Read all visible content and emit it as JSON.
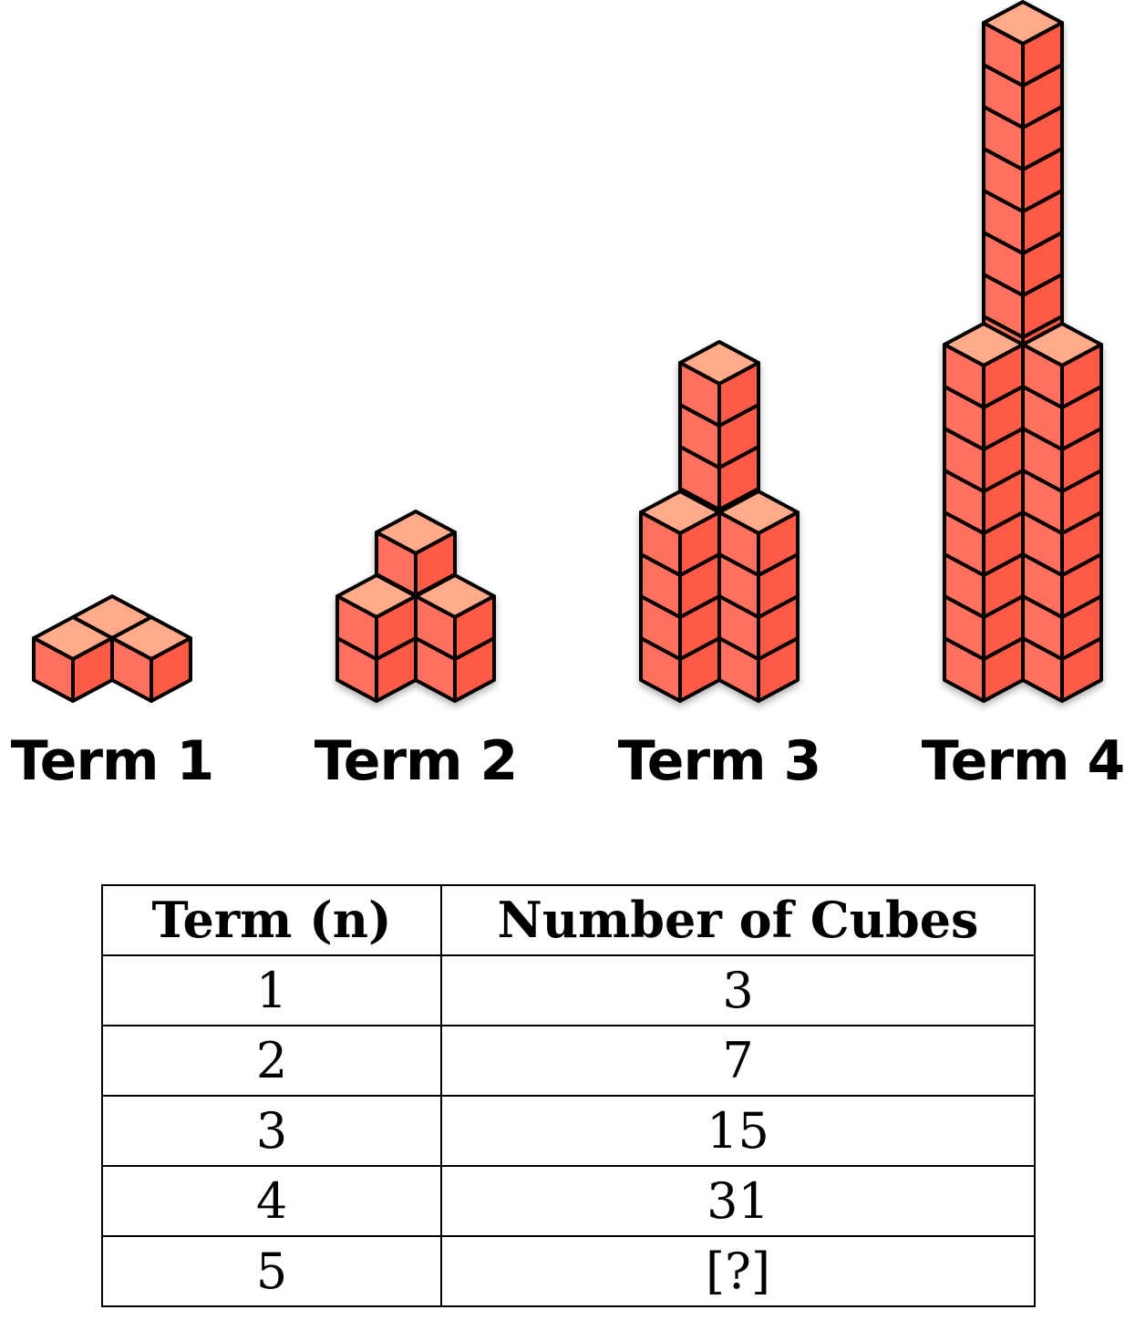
{
  "terms": [
    {
      "label": "Term 1"
    },
    {
      "label": "Term 2"
    },
    {
      "label": "Term 3"
    },
    {
      "label": "Term 4"
    }
  ],
  "colors": {
    "top": "#ffab8b",
    "left": "#ff705e",
    "right": "#ff5a46",
    "outline": "#000000"
  },
  "table": {
    "headers": [
      "Term (n)",
      "Number of Cubes"
    ],
    "rows": [
      [
        "1",
        "3"
      ],
      [
        "2",
        "7"
      ],
      [
        "3",
        "15"
      ],
      [
        "4",
        "31"
      ],
      [
        "5",
        "[?]"
      ]
    ]
  }
}
